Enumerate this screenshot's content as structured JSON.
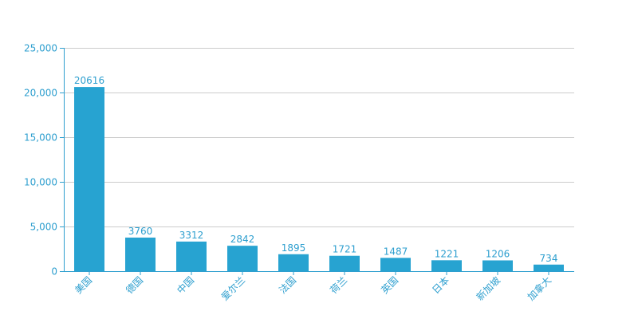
{
  "chart_data": {
    "type": "bar",
    "categories": [
      "美国",
      "德国",
      "中国",
      "爱尔兰",
      "法国",
      "荷兰",
      "英国",
      "日本",
      "新加坡",
      "加拿大"
    ],
    "values": [
      20616,
      3760,
      3312,
      2842,
      1895,
      1721,
      1487,
      1221,
      1206,
      734
    ],
    "value_labels": [
      "20616",
      "3760",
      "3312",
      "2842",
      "1895",
      "1721",
      "1487",
      "1221",
      "1206",
      "734"
    ],
    "title": "",
    "xlabel": "",
    "ylabel": "",
    "ylim": [
      0,
      25000
    ],
    "yticks": [
      0,
      5000,
      10000,
      15000,
      20000,
      25000
    ],
    "ytick_labels": [
      "0",
      "5,000",
      "10,000",
      "15,000",
      "20,000",
      "25,000"
    ],
    "grid": true,
    "legend": "none",
    "colors": {
      "bar": "#27a3d1",
      "text": "#2e9fcf",
      "axis": "#2e9fcf",
      "grid": "#cccccc"
    }
  }
}
